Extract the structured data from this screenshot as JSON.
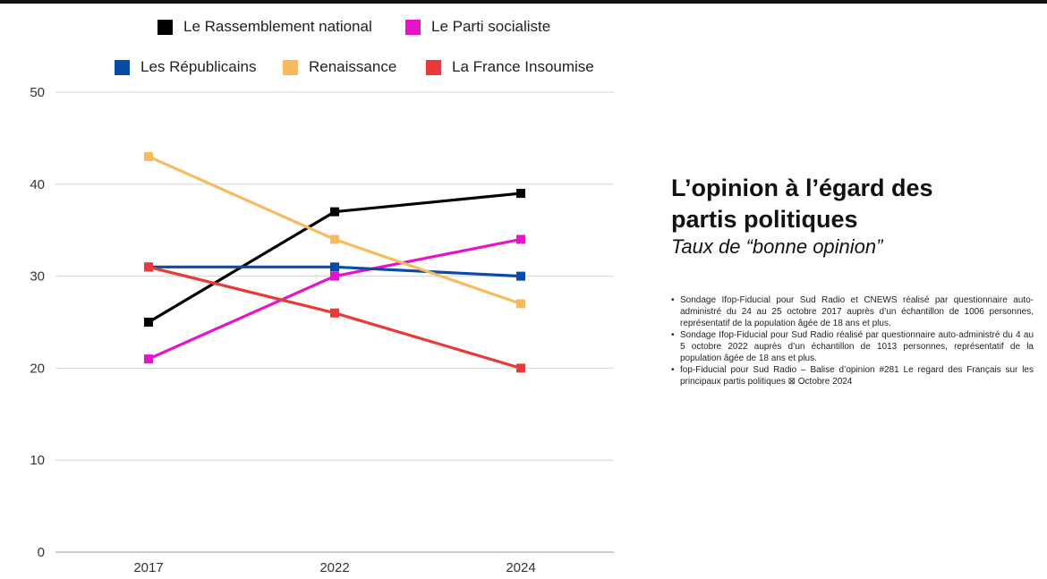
{
  "legend": {
    "row1": [
      {
        "name": "Le Rassemblement national",
        "color": "#000000"
      },
      {
        "name": "Le Parti socialiste",
        "color": "#e614c8"
      }
    ],
    "row2": [
      {
        "name": "Les Républicains",
        "color": "#0a4aa8"
      },
      {
        "name": "Renaissance",
        "color": "#f7bb5e"
      },
      {
        "name": "La France Insoumise",
        "color": "#e83a3a"
      }
    ]
  },
  "panel": {
    "title_line1": "L’opinion à l’égard des",
    "title_line2": "partis politiques",
    "subtitle": "Taux de “bonne opinion”",
    "notes": [
      "Sondage Ifop-Fiducial pour Sud Radio et CNEWS réalisé par questionnaire auto-administré du 24 au 25 octobre 2017 auprès d’un échantillon de 1006 personnes, représentatif de la population âgée de 18 ans et plus.",
      "Sondage Ifop-Fiducial pour Sud Radio réalisé par questionnaire auto-administré du 4 au 5 octobre 2022 auprès d’un échantillon de 1013 personnes, représentatif de la population âgée de 18 ans et plus.",
      "fop-Fiducial pour Sud Radio – Balise d’opinion #281 Le regard des Français sur les principaux partis politiques ⊠ Octobre 2024"
    ]
  },
  "chart_data": {
    "type": "line",
    "x": [
      "2017",
      "2022",
      "2024"
    ],
    "ylim": [
      0,
      50
    ],
    "yticks": [
      0,
      10,
      20,
      30,
      40,
      50
    ],
    "grid": true,
    "legend_position": "top",
    "series": [
      {
        "name": "Le Rassemblement national",
        "color": "#000000",
        "values": [
          25,
          37,
          39
        ]
      },
      {
        "name": "Le Parti socialiste",
        "color": "#e614c8",
        "values": [
          21,
          30,
          34
        ]
      },
      {
        "name": "Les Républicains",
        "color": "#0a4aa8",
        "values": [
          31,
          31,
          30
        ]
      },
      {
        "name": "Renaissance",
        "color": "#f7bb5e",
        "values": [
          43,
          34,
          27
        ]
      },
      {
        "name": "La France Insoumise",
        "color": "#e83a3a",
        "values": [
          31,
          26,
          20
        ]
      }
    ]
  }
}
